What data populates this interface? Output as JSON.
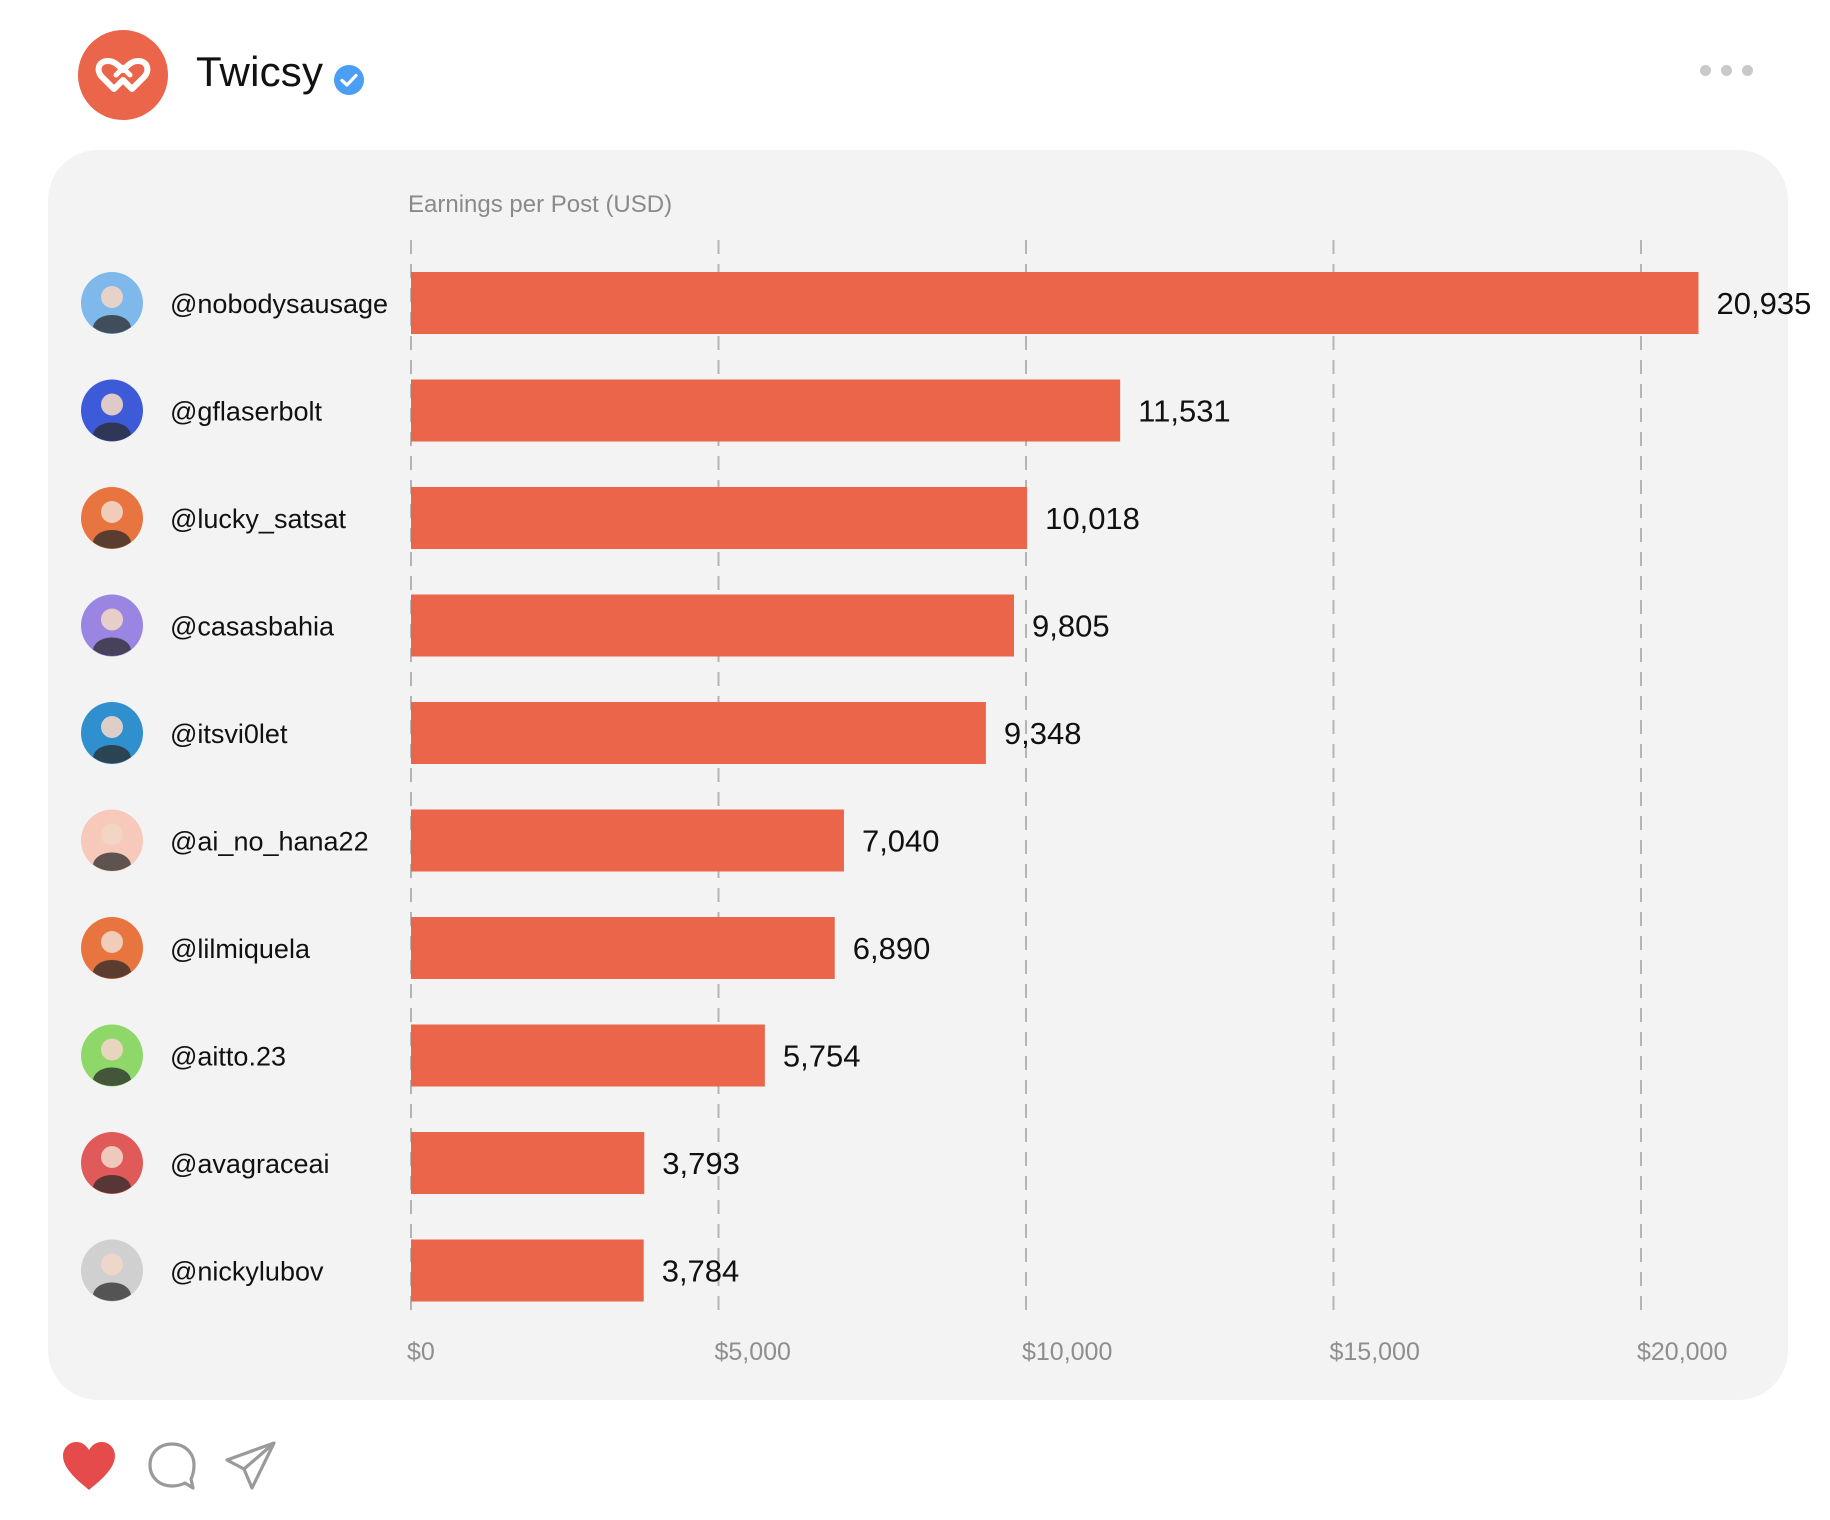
{
  "header": {
    "brand_name": "Twicsy",
    "logo_icon": "twicsy-logo-icon",
    "verified_icon": "verified-check-icon",
    "menu_icon": "more-dots-icon"
  },
  "colors": {
    "accent": "#ea654a",
    "card_bg": "#f3f3f3",
    "verified": "#4a9ef3",
    "heart": "#e54b4b"
  },
  "chart_data": {
    "type": "bar",
    "orientation": "horizontal",
    "title": "Earnings per Post (USD)",
    "categories": [
      "@nobodysausage",
      "@gflaserbolt",
      "@lucky_satsat",
      "@casasbahia",
      "@itsvi0let",
      "@ai_no_hana22",
      "@lilmiquela",
      "@aitto.23",
      "@avagraceai",
      "@nickylubov"
    ],
    "values": [
      20935,
      11531,
      10018,
      9805,
      9348,
      7040,
      6890,
      5754,
      3793,
      3784
    ],
    "value_labels": [
      "20,935",
      "11,531",
      "10,018",
      "9,805",
      "9,348",
      "7,040",
      "6,890",
      "5,754",
      "3,793",
      "3,784"
    ],
    "avatar_colors": [
      "#7fb8ea",
      "#3d5bd8",
      "#e8743f",
      "#9a86e2",
      "#2f8fcf",
      "#f7c9bb",
      "#e8743f",
      "#8ed86a",
      "#e15a5a",
      "#d0d0d0"
    ],
    "xlim": [
      0,
      20000
    ],
    "x_ticks": [
      0,
      5000,
      10000,
      15000,
      20000
    ],
    "x_tick_labels": [
      "$0",
      "$5,000",
      "$10,000",
      "$15,000",
      "$20,000"
    ],
    "grid": "vertical dashed",
    "bar_color": "#ea654a"
  },
  "actions": {
    "like_icon": "heart-icon",
    "comment_icon": "comment-icon",
    "share_icon": "send-icon"
  }
}
